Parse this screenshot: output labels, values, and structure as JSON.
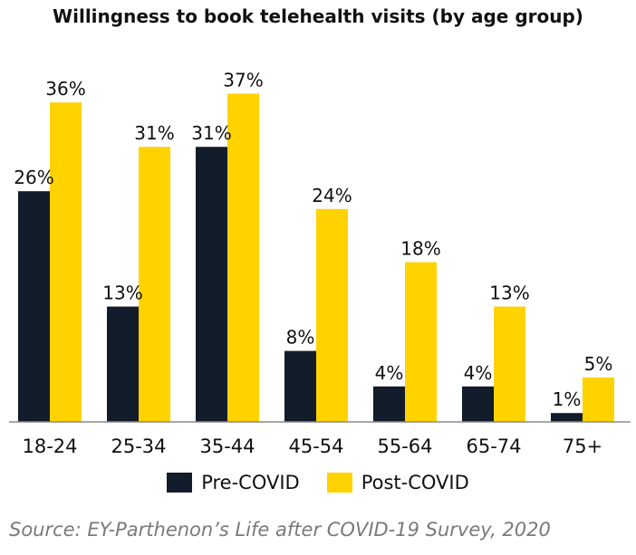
{
  "chart_data": {
    "type": "bar",
    "title": "Willingness to book telehealth visits (by age group)",
    "categories": [
      "18-24",
      "25-34",
      "35-44",
      "45-54",
      "55-64",
      "65-74",
      "75+"
    ],
    "series": [
      {
        "name": "Pre-COVID",
        "values": [
          26,
          13,
          31,
          8,
          4,
          4,
          1
        ],
        "color": "#131c2a"
      },
      {
        "name": "Post-COVID",
        "values": [
          36,
          31,
          37,
          24,
          18,
          13,
          5
        ],
        "color": "#ffd200"
      }
    ],
    "value_suffix": "%",
    "ylim": [
      0,
      40
    ],
    "grid": false,
    "legend_position": "bottom"
  },
  "source": "Source: EY-Parthenon’s Life after COVID-19 Survey, 2020"
}
